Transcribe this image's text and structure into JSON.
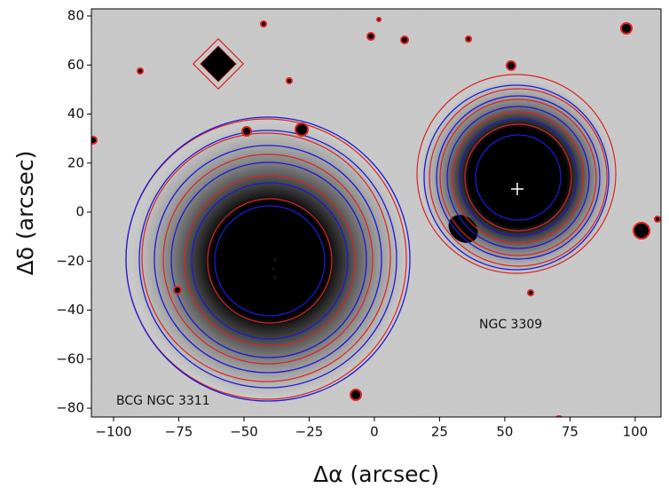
{
  "chart_data": {
    "type": "image",
    "xlabel": "Δα (arcsec)",
    "ylabel": "Δδ (arcsec)",
    "annotations": [
      "NGC 3309",
      "BCG NGC 3311"
    ],
    "xlim": [
      -108.5,
      109.9
    ],
    "ylim": [
      -83.6,
      82.9
    ],
    "xticks": [
      {
        "value": -100,
        "label": "−100"
      },
      {
        "value": -75,
        "label": "−75"
      },
      {
        "value": -50,
        "label": "−50"
      },
      {
        "value": -25,
        "label": "−25"
      },
      0,
      25,
      50,
      75,
      100
    ],
    "yticks": [
      {
        "value": -80,
        "label": "−80"
      },
      {
        "value": -60,
        "label": "−60"
      },
      {
        "value": -40,
        "label": "−40"
      },
      {
        "value": -20,
        "label": "−20"
      },
      0,
      20,
      40,
      60,
      80
    ]
  }
}
